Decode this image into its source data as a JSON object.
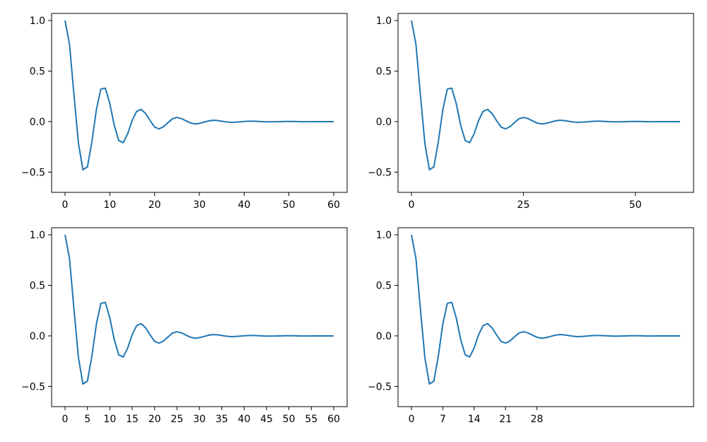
{
  "chart_data": [
    {
      "type": "line",
      "title": "",
      "xlabel": "",
      "ylabel": "",
      "xlim": [
        -3,
        63
      ],
      "ylim": [
        -0.7,
        1.07
      ],
      "xticks": [
        0,
        10,
        20,
        30,
        40,
        50,
        60
      ],
      "xtick_labels": [
        "0",
        "10",
        "20",
        "30",
        "40",
        "50",
        "60"
      ],
      "yticks": [
        -0.5,
        0.0,
        0.5,
        1.0
      ],
      "ytick_labels": [
        "−0.5",
        "0.0",
        "0.5",
        "1.0"
      ],
      "series": [
        {
          "color": "#1f77b4",
          "x": [
            0,
            1,
            2,
            3,
            4,
            5,
            6,
            7,
            8,
            9,
            10,
            11,
            12,
            13,
            14,
            15,
            16,
            17,
            18,
            19,
            20,
            21,
            22,
            23,
            24,
            25,
            26,
            27,
            28,
            29,
            30,
            31,
            32,
            33,
            34,
            35,
            36,
            37,
            38,
            39,
            40,
            41,
            42,
            43,
            44,
            45,
            46,
            47,
            48,
            49,
            50,
            51,
            52,
            53,
            54,
            55,
            56,
            57,
            58,
            59,
            60
          ],
          "y": [
            1.0,
            0.764,
            0.261,
            -0.218,
            -0.476,
            -0.448,
            -0.198,
            0.118,
            0.322,
            0.331,
            0.178,
            -0.038,
            -0.188,
            -0.208,
            -0.119,
            0.012,
            0.102,
            0.121,
            0.079,
            0.01,
            -0.054,
            -0.072,
            -0.05,
            -0.01,
            0.028,
            0.041,
            0.03,
            0.008,
            -0.013,
            -0.023,
            -0.018,
            -0.006,
            0.006,
            0.013,
            0.011,
            0.004,
            -0.003,
            -0.007,
            -0.006,
            -0.003,
            0.001,
            0.004,
            0.004,
            0.002,
            0.0,
            -0.002,
            -0.002,
            -0.001,
            0.0,
            0.001,
            0.001,
            0.001,
            0.0,
            -0.001,
            -0.001,
            0.0,
            0.0,
            0.0,
            0.0,
            0.0,
            0.0
          ]
        }
      ],
      "grid": false
    },
    {
      "type": "line",
      "title": "",
      "xlabel": "",
      "ylabel": "",
      "xlim": [
        -3,
        63
      ],
      "ylim": [
        -0.7,
        1.07
      ],
      "xticks": [
        0,
        25,
        50
      ],
      "xtick_labels": [
        "0",
        "25",
        "50"
      ],
      "yticks": [
        -0.5,
        0.0,
        0.5,
        1.0
      ],
      "ytick_labels": [
        "−0.5",
        "0.0",
        "0.5",
        "1.0"
      ],
      "series": [
        {
          "color": "#1f77b4",
          "x": [
            0,
            1,
            2,
            3,
            4,
            5,
            6,
            7,
            8,
            9,
            10,
            11,
            12,
            13,
            14,
            15,
            16,
            17,
            18,
            19,
            20,
            21,
            22,
            23,
            24,
            25,
            26,
            27,
            28,
            29,
            30,
            31,
            32,
            33,
            34,
            35,
            36,
            37,
            38,
            39,
            40,
            41,
            42,
            43,
            44,
            45,
            46,
            47,
            48,
            49,
            50,
            51,
            52,
            53,
            54,
            55,
            56,
            57,
            58,
            59,
            60
          ],
          "y": [
            1.0,
            0.764,
            0.261,
            -0.218,
            -0.476,
            -0.448,
            -0.198,
            0.118,
            0.322,
            0.331,
            0.178,
            -0.038,
            -0.188,
            -0.208,
            -0.119,
            0.012,
            0.102,
            0.121,
            0.079,
            0.01,
            -0.054,
            -0.072,
            -0.05,
            -0.01,
            0.028,
            0.041,
            0.03,
            0.008,
            -0.013,
            -0.023,
            -0.018,
            -0.006,
            0.006,
            0.013,
            0.011,
            0.004,
            -0.003,
            -0.007,
            -0.006,
            -0.003,
            0.001,
            0.004,
            0.004,
            0.002,
            0.0,
            -0.002,
            -0.002,
            -0.001,
            0.0,
            0.001,
            0.001,
            0.001,
            0.0,
            -0.001,
            -0.001,
            0.0,
            0.0,
            0.0,
            0.0,
            0.0,
            0.0
          ]
        }
      ],
      "grid": false
    },
    {
      "type": "line",
      "title": "",
      "xlabel": "",
      "ylabel": "",
      "xlim": [
        -3,
        63
      ],
      "ylim": [
        -0.7,
        1.07
      ],
      "xticks": [
        0,
        5,
        10,
        15,
        20,
        25,
        30,
        35,
        40,
        45,
        50,
        55,
        60
      ],
      "xtick_labels": [
        "0",
        "5",
        "10",
        "15",
        "20",
        "25",
        "30",
        "35",
        "40",
        "45",
        "50",
        "55",
        "60"
      ],
      "yticks": [
        -0.5,
        0.0,
        0.5,
        1.0
      ],
      "ytick_labels": [
        "−0.5",
        "0.0",
        "0.5",
        "1.0"
      ],
      "series": [
        {
          "color": "#1f77b4",
          "x": [
            0,
            1,
            2,
            3,
            4,
            5,
            6,
            7,
            8,
            9,
            10,
            11,
            12,
            13,
            14,
            15,
            16,
            17,
            18,
            19,
            20,
            21,
            22,
            23,
            24,
            25,
            26,
            27,
            28,
            29,
            30,
            31,
            32,
            33,
            34,
            35,
            36,
            37,
            38,
            39,
            40,
            41,
            42,
            43,
            44,
            45,
            46,
            47,
            48,
            49,
            50,
            51,
            52,
            53,
            54,
            55,
            56,
            57,
            58,
            59,
            60
          ],
          "y": [
            1.0,
            0.764,
            0.261,
            -0.218,
            -0.476,
            -0.448,
            -0.198,
            0.118,
            0.322,
            0.331,
            0.178,
            -0.038,
            -0.188,
            -0.208,
            -0.119,
            0.012,
            0.102,
            0.121,
            0.079,
            0.01,
            -0.054,
            -0.072,
            -0.05,
            -0.01,
            0.028,
            0.041,
            0.03,
            0.008,
            -0.013,
            -0.023,
            -0.018,
            -0.006,
            0.006,
            0.013,
            0.011,
            0.004,
            -0.003,
            -0.007,
            -0.006,
            -0.003,
            0.001,
            0.004,
            0.004,
            0.002,
            0.0,
            -0.002,
            -0.002,
            -0.001,
            0.0,
            0.001,
            0.001,
            0.001,
            0.0,
            -0.001,
            -0.001,
            0.0,
            0.0,
            0.0,
            0.0,
            0.0,
            0.0
          ]
        }
      ],
      "grid": false
    },
    {
      "type": "line",
      "title": "",
      "xlabel": "",
      "ylabel": "",
      "xlim": [
        -3,
        63
      ],
      "ylim": [
        -0.7,
        1.07
      ],
      "xticks": [
        0,
        7,
        14,
        21,
        28
      ],
      "xtick_labels": [
        "0",
        "7",
        "14",
        "21",
        "28"
      ],
      "yticks": [
        -0.5,
        0.0,
        0.5,
        1.0
      ],
      "ytick_labels": [
        "−0.5",
        "0.0",
        "0.5",
        "1.0"
      ],
      "series": [
        {
          "color": "#1f77b4",
          "x": [
            0,
            1,
            2,
            3,
            4,
            5,
            6,
            7,
            8,
            9,
            10,
            11,
            12,
            13,
            14,
            15,
            16,
            17,
            18,
            19,
            20,
            21,
            22,
            23,
            24,
            25,
            26,
            27,
            28,
            29,
            30,
            31,
            32,
            33,
            34,
            35,
            36,
            37,
            38,
            39,
            40,
            41,
            42,
            43,
            44,
            45,
            46,
            47,
            48,
            49,
            50,
            51,
            52,
            53,
            54,
            55,
            56,
            57,
            58,
            59,
            60
          ],
          "y": [
            1.0,
            0.764,
            0.261,
            -0.218,
            -0.476,
            -0.448,
            -0.198,
            0.118,
            0.322,
            0.331,
            0.178,
            -0.038,
            -0.188,
            -0.208,
            -0.119,
            0.012,
            0.102,
            0.121,
            0.079,
            0.01,
            -0.054,
            -0.072,
            -0.05,
            -0.01,
            0.028,
            0.041,
            0.03,
            0.008,
            -0.013,
            -0.023,
            -0.018,
            -0.006,
            0.006,
            0.013,
            0.011,
            0.004,
            -0.003,
            -0.007,
            -0.006,
            -0.003,
            0.001,
            0.004,
            0.004,
            0.002,
            0.0,
            -0.002,
            -0.002,
            -0.001,
            0.0,
            0.001,
            0.001,
            0.001,
            0.0,
            -0.001,
            -0.001,
            0.0,
            0.0,
            0.0,
            0.0,
            0.0,
            0.0
          ]
        }
      ],
      "grid": false
    }
  ]
}
